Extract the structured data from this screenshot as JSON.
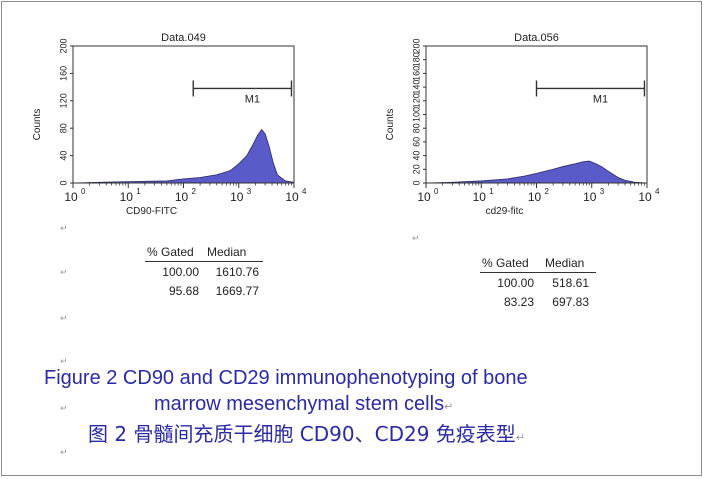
{
  "chart_data": [
    {
      "type": "area",
      "title": "Data.049",
      "xlabel": "CD90-FITC",
      "ylabel": "Counts",
      "x_scale": "log",
      "xlim": [
        1,
        10000
      ],
      "ylim": [
        0,
        200
      ],
      "x_tick_labels": [
        "10",
        "10",
        "10",
        "10",
        "10"
      ],
      "x_tick_exponents": [
        "0",
        "1",
        "2",
        "3",
        "4"
      ],
      "y_tick_labels": [
        "0",
        "40",
        "80",
        "120",
        "160",
        "200"
      ],
      "marker": {
        "label": "M1",
        "x_range": [
          150,
          9000
        ]
      },
      "fill_color": "#5a5ac8",
      "grid": false,
      "series": [
        {
          "x": [
            1,
            3,
            10,
            50,
            100,
            200,
            400,
            700,
            1000,
            1400,
            1800,
            2200,
            2600,
            3000,
            3500,
            4200,
            5000,
            7000,
            10000
          ],
          "values": [
            0,
            1,
            2,
            3,
            6,
            8,
            12,
            18,
            28,
            40,
            56,
            70,
            78,
            72,
            55,
            30,
            12,
            3,
            1
          ]
        }
      ],
      "stats_table": {
        "headers": [
          "% Gated",
          "Median"
        ],
        "rows": [
          [
            "100.00",
            "1610.76"
          ],
          [
            "95.68",
            "1669.77"
          ]
        ]
      }
    },
    {
      "type": "area",
      "title": "Data.056",
      "xlabel": "cd29-fitc",
      "ylabel": "Counts",
      "x_scale": "log",
      "xlim": [
        1,
        10000
      ],
      "ylim": [
        0,
        200
      ],
      "x_tick_labels": [
        "10",
        "10",
        "10",
        "10",
        "10"
      ],
      "x_tick_exponents": [
        "0",
        "1",
        "2",
        "3",
        "4"
      ],
      "y_tick_labels": [
        "0",
        "20",
        "40",
        "60",
        "80",
        "100",
        "120",
        "140",
        "160",
        "180",
        "200"
      ],
      "marker": {
        "label": "M1",
        "x_range": [
          100,
          9000
        ]
      },
      "fill_color": "#5a5ac8",
      "grid": false,
      "series": [
        {
          "x": [
            1,
            3,
            10,
            30,
            60,
            100,
            200,
            300,
            500,
            700,
            900,
            1200,
            1500,
            2000,
            3000,
            4000,
            6000,
            10000
          ],
          "values": [
            0,
            1,
            3,
            6,
            10,
            14,
            20,
            24,
            28,
            31,
            32,
            28,
            24,
            17,
            8,
            4,
            1,
            0
          ]
        }
      ],
      "stats_table": {
        "headers": [
          "% Gated",
          "Median"
        ],
        "rows": [
          [
            "100.00",
            "518.61"
          ],
          [
            "83.23",
            "697.83"
          ]
        ]
      }
    }
  ],
  "caption": {
    "line1": "Figure 2   CD90 and CD29 immunophenotyping of bone",
    "line2": "marrow mesenchymal stem cells",
    "chinese": "图 2   骨髓间充质干细胞 CD90、CD29 免疫表型"
  },
  "colors": {
    "caption": "#2a2aa6",
    "histogram_fill": "#5a5ac8",
    "border": "#8c8c8c"
  },
  "paragraph_mark": "↵"
}
